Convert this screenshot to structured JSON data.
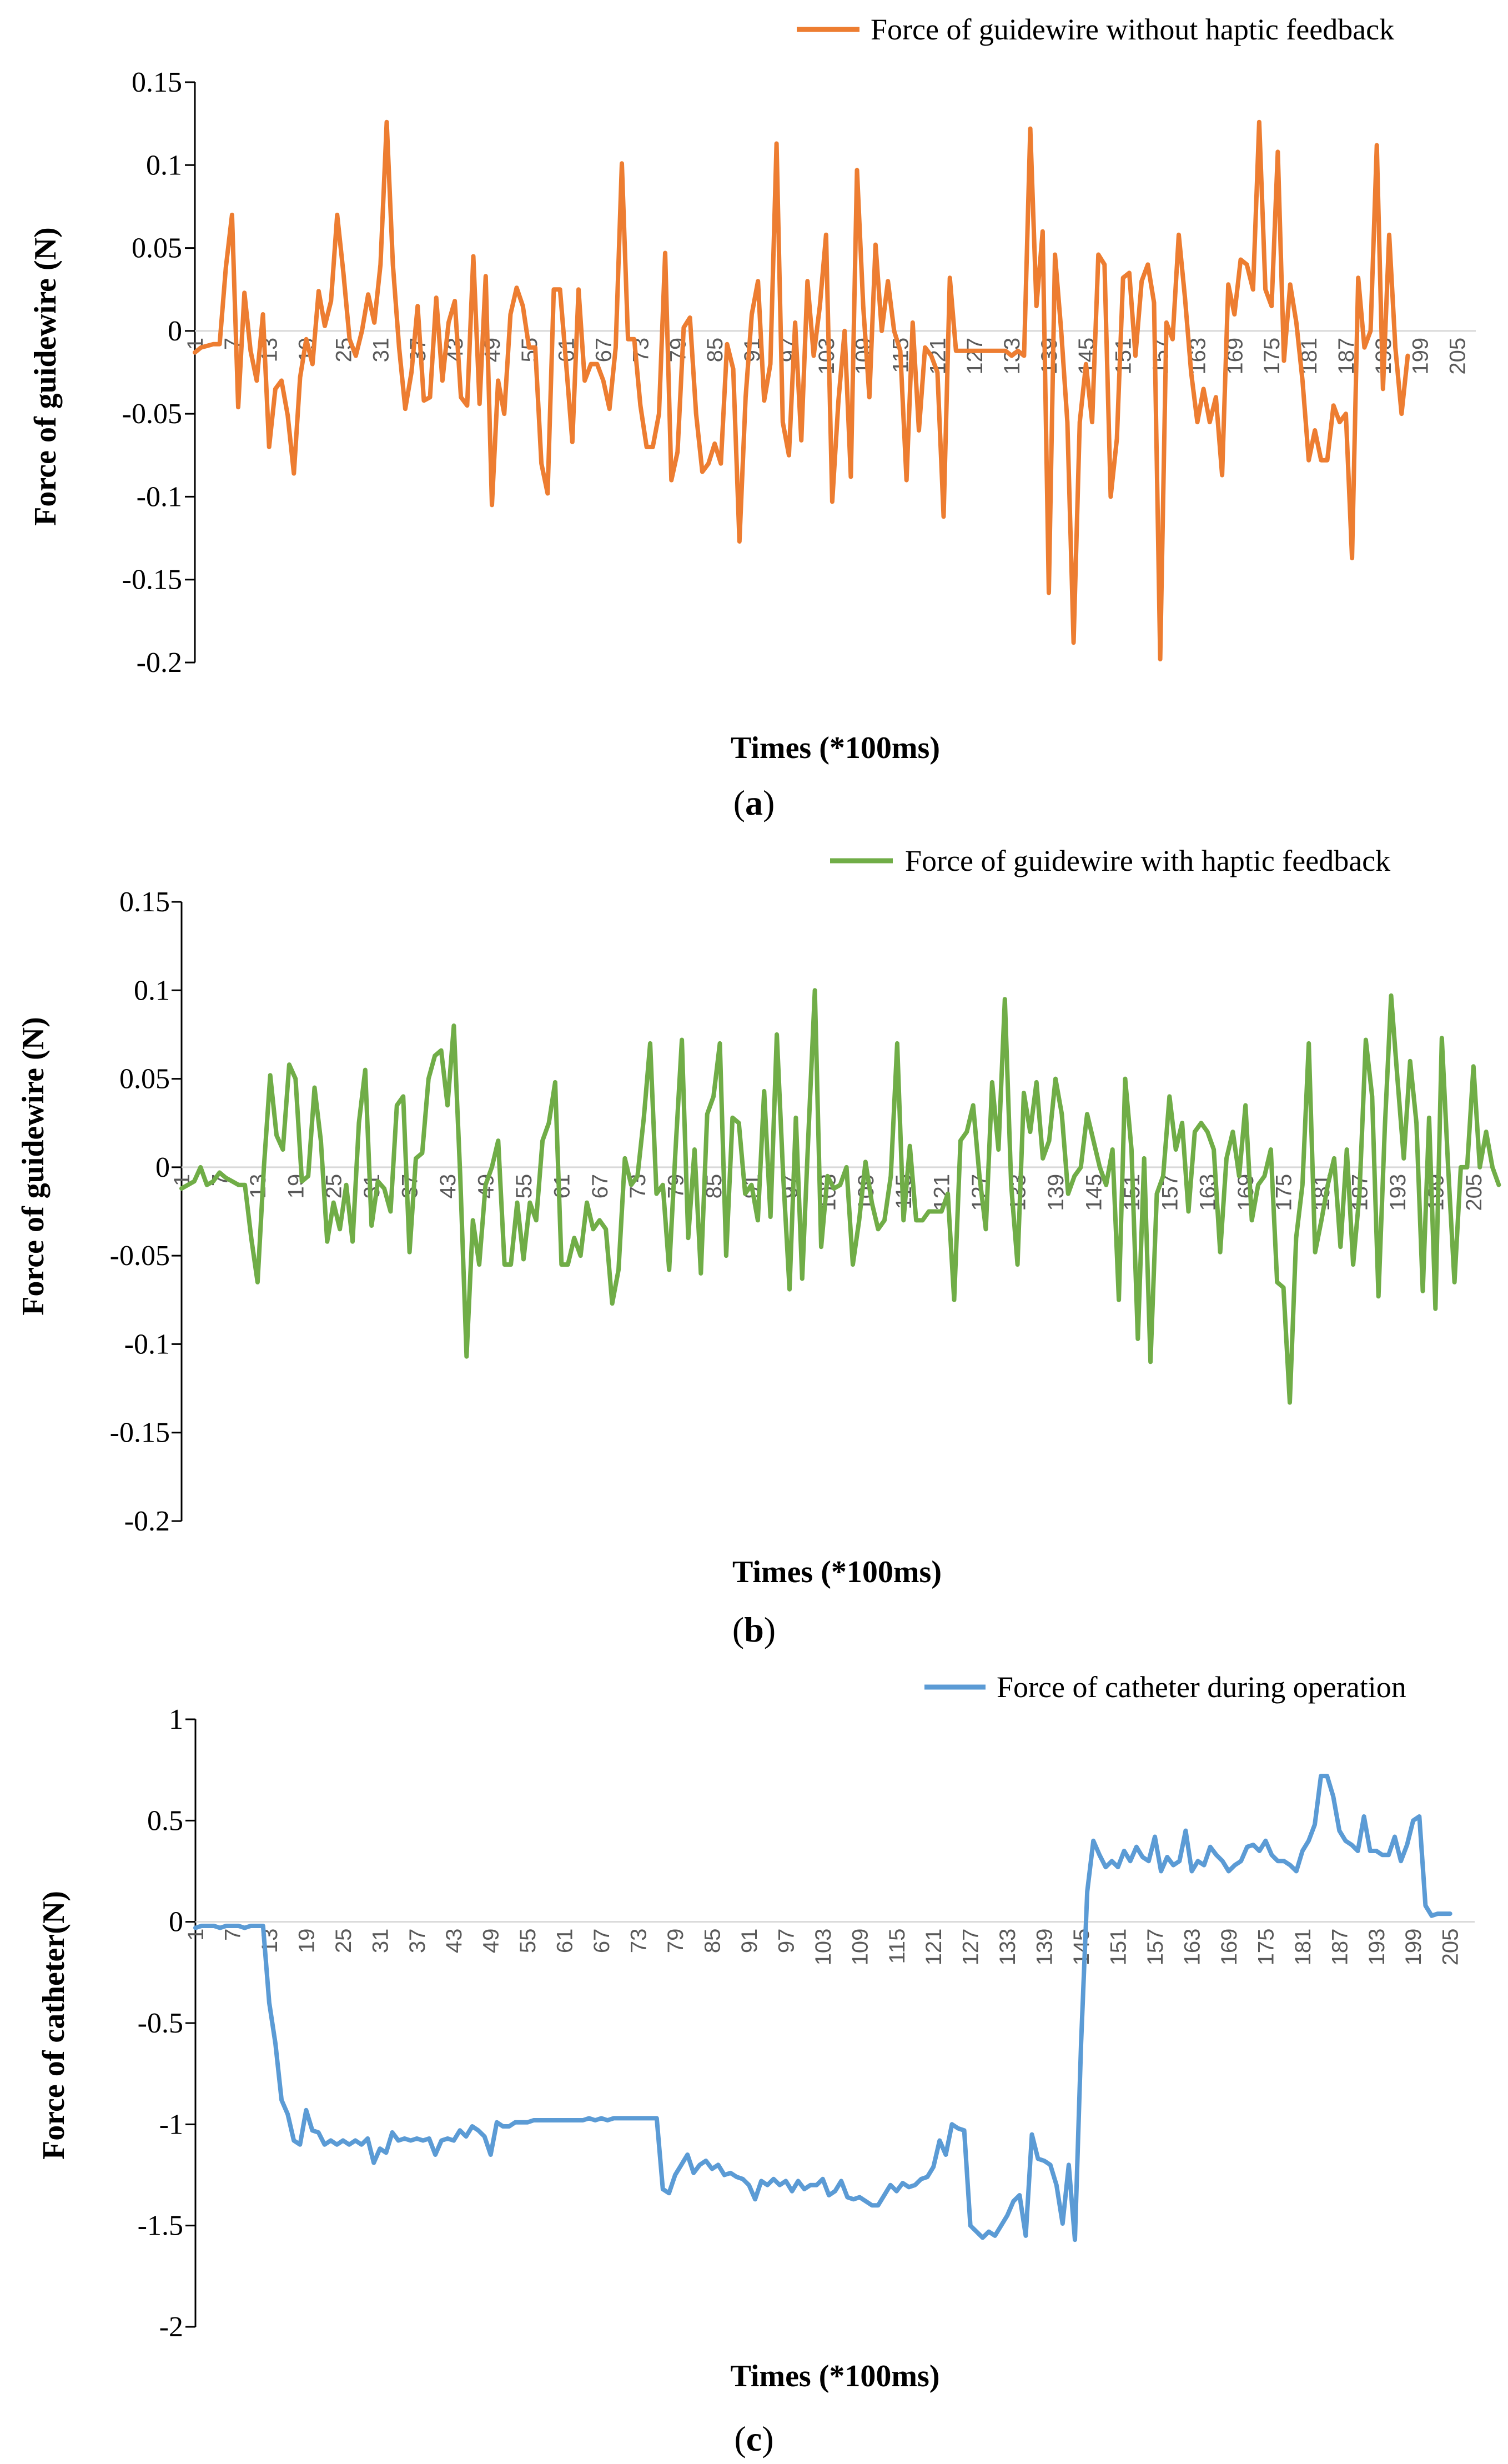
{
  "figure": {
    "panels": [
      {
        "label_open": "(",
        "label_letter": "a",
        "label_close": ")"
      },
      {
        "label_open": "(",
        "label_letter": "b",
        "label_close": ")"
      },
      {
        "label_open": "(",
        "label_letter": "c",
        "label_close": ")"
      }
    ]
  },
  "chart_data": [
    {
      "type": "line",
      "title": "",
      "series_name": "Force of guidewire without haptic feedback",
      "color": "#ED7D31",
      "xlabel": "Times (*100ms)",
      "ylabel": "Force of guidewire (N)",
      "ylim": [
        -0.2,
        0.15
      ],
      "yticks": [
        0.15,
        0.1,
        0.05,
        0,
        -0.05,
        -0.1,
        -0.15,
        -0.2
      ],
      "ytick_labels": [
        "0.15",
        "0.1",
        "0.05",
        "0",
        "-0.05",
        "-0.1",
        "-0.15",
        "-0.2"
      ],
      "x_start": 1,
      "x_count": 208,
      "xtick_labels": [
        "1",
        "7",
        "13",
        "19",
        "25",
        "31",
        "37",
        "43",
        "49",
        "55",
        "61",
        "67",
        "73",
        "79",
        "85",
        "91",
        "97",
        "103",
        "109",
        "115",
        "121",
        "127",
        "133",
        "139",
        "145",
        "151",
        "157",
        "163",
        "169",
        "175",
        "181",
        "187",
        "193",
        "199",
        "205"
      ],
      "grid": false,
      "legend": "top-right",
      "values": [
        -0.013,
        -0.01,
        -0.009,
        -0.008,
        -0.008,
        0.038,
        0.07,
        -0.046,
        0.023,
        -0.012,
        -0.03,
        0.01,
        -0.07,
        -0.035,
        -0.03,
        -0.051,
        -0.086,
        -0.028,
        -0.005,
        -0.02,
        0.024,
        0.003,
        0.018,
        0.07,
        0.035,
        -0.005,
        -0.015,
        0.0,
        0.022,
        0.005,
        0.04,
        0.126,
        0.04,
        -0.01,
        -0.047,
        -0.025,
        0.015,
        -0.042,
        -0.04,
        0.02,
        -0.03,
        0.005,
        0.018,
        -0.04,
        -0.045,
        0.045,
        -0.044,
        0.033,
        -0.105,
        -0.03,
        -0.05,
        0.01,
        0.026,
        0.015,
        -0.01,
        -0.01,
        -0.08,
        -0.098,
        0.025,
        0.025,
        -0.02,
        -0.067,
        0.025,
        -0.03,
        -0.02,
        -0.02,
        -0.03,
        -0.047,
        -0.01,
        0.101,
        -0.005,
        -0.005,
        -0.045,
        -0.07,
        -0.07,
        -0.05,
        0.047,
        -0.09,
        -0.073,
        0.002,
        0.008,
        -0.05,
        -0.085,
        -0.08,
        -0.068,
        -0.08,
        -0.008,
        -0.023,
        -0.127,
        -0.04,
        0.01,
        0.03,
        -0.042,
        -0.02,
        0.113,
        -0.055,
        -0.075,
        0.005,
        -0.066,
        0.03,
        -0.015,
        0.015,
        0.058,
        -0.103,
        -0.042,
        0.0,
        -0.088,
        0.097,
        0.015,
        -0.04,
        0.052,
        0.0,
        0.03,
        0.0,
        -0.012,
        -0.09,
        0.005,
        -0.06,
        -0.01,
        -0.015,
        -0.025,
        -0.112,
        0.032,
        -0.012,
        -0.012,
        -0.012,
        -0.012,
        -0.012,
        -0.012,
        -0.012,
        -0.012,
        -0.012,
        -0.015,
        -0.012,
        -0.015,
        0.122,
        0.015,
        0.06,
        -0.158,
        0.046,
        0.0,
        -0.055,
        -0.188,
        -0.055,
        -0.02,
        -0.055,
        0.046,
        0.04,
        -0.1,
        -0.065,
        0.032,
        0.035,
        -0.015,
        0.03,
        0.04,
        0.017,
        -0.198,
        0.005,
        -0.005,
        0.058,
        0.02,
        -0.025,
        -0.055,
        -0.035,
        -0.055,
        -0.04,
        -0.087,
        0.028,
        0.01,
        0.043,
        0.04,
        0.025,
        0.126,
        0.025,
        0.015,
        0.108,
        -0.018,
        0.028,
        0.005,
        -0.03,
        -0.078,
        -0.06,
        -0.078,
        -0.078,
        -0.045,
        -0.055,
        -0.05,
        -0.137,
        0.032,
        -0.01,
        0.0,
        0.112,
        -0.035,
        0.058,
        -0.01,
        -0.05,
        -0.015
      ]
    },
    {
      "type": "line",
      "title": "",
      "series_name": "Force of guidewire with haptic feedback",
      "color": "#70AD47",
      "xlabel": "Times (*100ms)",
      "ylabel": "Force of guidewire (N)",
      "ylim": [
        -0.2,
        0.15
      ],
      "yticks": [
        0.15,
        0.1,
        0.05,
        0,
        -0.05,
        -0.1,
        -0.15,
        -0.2
      ],
      "ytick_labels": [
        "0.15",
        "0.1",
        "0.05",
        "0",
        "-0.05",
        "-0.1",
        "-0.15",
        "-0.2"
      ],
      "x_start": 1,
      "x_count": 208,
      "xtick_labels": [
        "1",
        "7",
        "13",
        "19",
        "25",
        "31",
        "37",
        "43",
        "49",
        "55",
        "61",
        "67",
        "73",
        "79",
        "85",
        "91",
        "97",
        "103",
        "109",
        "115",
        "121",
        "127",
        "133",
        "139",
        "145",
        "151",
        "157",
        "163",
        "169",
        "175",
        "181",
        "187",
        "193",
        "199",
        "205"
      ],
      "grid": false,
      "legend": "top-right",
      "values": [
        -0.012,
        -0.01,
        -0.008,
        0.0,
        -0.01,
        -0.008,
        -0.003,
        -0.006,
        -0.008,
        -0.01,
        -0.01,
        -0.04,
        -0.065,
        0.0,
        0.052,
        0.018,
        0.01,
        0.058,
        0.05,
        -0.008,
        -0.005,
        0.045,
        0.015,
        -0.042,
        -0.02,
        -0.035,
        -0.01,
        -0.042,
        0.025,
        0.055,
        -0.033,
        -0.008,
        -0.012,
        -0.025,
        0.035,
        0.04,
        -0.048,
        0.005,
        0.008,
        0.05,
        0.063,
        0.066,
        0.035,
        0.08,
        -0.005,
        -0.107,
        -0.03,
        -0.055,
        -0.01,
        0.0,
        0.015,
        -0.055,
        -0.055,
        -0.02,
        -0.052,
        -0.02,
        -0.03,
        0.015,
        0.025,
        0.048,
        -0.055,
        -0.055,
        -0.04,
        -0.05,
        -0.02,
        -0.035,
        -0.03,
        -0.035,
        -0.077,
        -0.058,
        0.005,
        -0.01,
        -0.005,
        0.028,
        0.07,
        -0.015,
        -0.01,
        -0.058,
        0.01,
        0.072,
        -0.04,
        0.01,
        -0.06,
        0.03,
        0.04,
        0.07,
        -0.05,
        0.028,
        0.025,
        -0.015,
        -0.01,
        -0.03,
        0.043,
        -0.028,
        0.075,
        -0.005,
        -0.069,
        0.028,
        -0.063,
        0.02,
        0.1,
        -0.045,
        -0.005,
        -0.012,
        -0.01,
        0.0,
        -0.055,
        -0.03,
        0.003,
        -0.02,
        -0.035,
        -0.03,
        -0.005,
        0.07,
        -0.03,
        0.012,
        -0.03,
        -0.03,
        -0.025,
        -0.025,
        -0.025,
        -0.015,
        -0.075,
        0.015,
        0.02,
        0.035,
        -0.005,
        -0.035,
        0.048,
        0.01,
        0.095,
        -0.01,
        -0.055,
        0.042,
        0.02,
        0.048,
        0.005,
        0.015,
        0.05,
        0.03,
        -0.015,
        -0.005,
        0.0,
        0.03,
        0.015,
        0.0,
        -0.01,
        0.01,
        -0.075,
        0.05,
        0.01,
        -0.097,
        0.005,
        -0.11,
        -0.015,
        -0.005,
        0.04,
        0.01,
        0.025,
        -0.025,
        0.02,
        0.025,
        0.02,
        0.01,
        -0.048,
        0.005,
        0.02,
        -0.005,
        0.035,
        -0.03,
        -0.01,
        -0.005,
        0.01,
        -0.065,
        -0.068,
        -0.133,
        -0.04,
        -0.01,
        0.07,
        -0.048,
        -0.03,
        -0.01,
        0.005,
        -0.045,
        0.01,
        -0.055,
        -0.015,
        0.072,
        0.04,
        -0.073,
        0.022,
        0.097,
        0.05,
        0.005,
        0.06,
        0.025,
        -0.07,
        0.028,
        -0.08,
        0.073,
        0.0,
        -0.065,
        0.0,
        0.0,
        0.057,
        0.0,
        0.02,
        0.0,
        -0.01
      ]
    },
    {
      "type": "line",
      "title": "",
      "series_name": "Force of catheter during operation",
      "color": "#5B9BD5",
      "xlabel": "Times (*100ms)",
      "ylabel": "Force of catheter(N)",
      "ylim": [
        -2,
        1
      ],
      "yticks": [
        1,
        0.5,
        0,
        -0.5,
        -1,
        -1.5,
        -2
      ],
      "ytick_labels": [
        "1",
        "0.5",
        "0",
        "-0.5",
        "-1",
        "-1.5",
        "-2"
      ],
      "x_start": 1,
      "x_count": 209,
      "xtick_labels": [
        "1",
        "7",
        "13",
        "19",
        "25",
        "31",
        "37",
        "43",
        "49",
        "55",
        "61",
        "67",
        "73",
        "79",
        "85",
        "91",
        "97",
        "103",
        "109",
        "115",
        "121",
        "127",
        "133",
        "139",
        "145",
        "151",
        "157",
        "163",
        "169",
        "175",
        "181",
        "187",
        "193",
        "199",
        "205"
      ],
      "grid": false,
      "legend": "top-right",
      "values": [
        -0.03,
        -0.02,
        -0.02,
        -0.02,
        -0.03,
        -0.02,
        -0.02,
        -0.02,
        -0.03,
        -0.02,
        -0.02,
        -0.02,
        -0.4,
        -0.6,
        -0.88,
        -0.95,
        -1.08,
        -1.1,
        -0.93,
        -1.03,
        -1.04,
        -1.1,
        -1.08,
        -1.1,
        -1.08,
        -1.1,
        -1.08,
        -1.1,
        -1.07,
        -1.19,
        -1.12,
        -1.14,
        -1.04,
        -1.08,
        -1.07,
        -1.08,
        -1.07,
        -1.08,
        -1.07,
        -1.15,
        -1.08,
        -1.07,
        -1.08,
        -1.03,
        -1.06,
        -1.01,
        -1.03,
        -1.06,
        -1.15,
        -0.99,
        -1.01,
        -1.01,
        -0.99,
        -0.99,
        -0.99,
        -0.98,
        -0.98,
        -0.98,
        -0.98,
        -0.98,
        -0.98,
        -0.98,
        -0.98,
        -0.98,
        -0.97,
        -0.98,
        -0.97,
        -0.98,
        -0.97,
        -0.97,
        -0.97,
        -0.97,
        -0.97,
        -0.97,
        -0.97,
        -0.97,
        -1.32,
        -1.34,
        -1.25,
        -1.2,
        -1.15,
        -1.24,
        -1.2,
        -1.18,
        -1.22,
        -1.2,
        -1.25,
        -1.24,
        -1.26,
        -1.27,
        -1.3,
        -1.37,
        -1.28,
        -1.3,
        -1.27,
        -1.3,
        -1.28,
        -1.33,
        -1.28,
        -1.32,
        -1.3,
        -1.3,
        -1.27,
        -1.35,
        -1.33,
        -1.28,
        -1.36,
        -1.37,
        -1.36,
        -1.38,
        -1.4,
        -1.4,
        -1.35,
        -1.3,
        -1.33,
        -1.29,
        -1.31,
        -1.3,
        -1.27,
        -1.26,
        -1.21,
        -1.08,
        -1.15,
        -1.0,
        -1.02,
        -1.03,
        -1.5,
        -1.53,
        -1.56,
        -1.53,
        -1.55,
        -1.5,
        -1.45,
        -1.38,
        -1.35,
        -1.55,
        -1.05,
        -1.17,
        -1.18,
        -1.2,
        -1.3,
        -1.49,
        -1.2,
        -1.57,
        -0.6,
        0.15,
        0.4,
        0.33,
        0.27,
        0.3,
        0.27,
        0.35,
        0.3,
        0.37,
        0.32,
        0.3,
        0.42,
        0.25,
        0.32,
        0.28,
        0.3,
        0.45,
        0.25,
        0.3,
        0.28,
        0.37,
        0.33,
        0.3,
        0.25,
        0.28,
        0.3,
        0.37,
        0.38,
        0.35,
        0.4,
        0.33,
        0.3,
        0.3,
        0.28,
        0.25,
        0.35,
        0.4,
        0.48,
        0.72,
        0.72,
        0.62,
        0.45,
        0.4,
        0.38,
        0.35,
        0.52,
        0.35,
        0.35,
        0.33,
        0.33,
        0.42,
        0.3,
        0.38,
        0.5,
        0.52,
        0.08,
        0.03,
        0.04,
        0.04,
        0.04
      ]
    }
  ]
}
